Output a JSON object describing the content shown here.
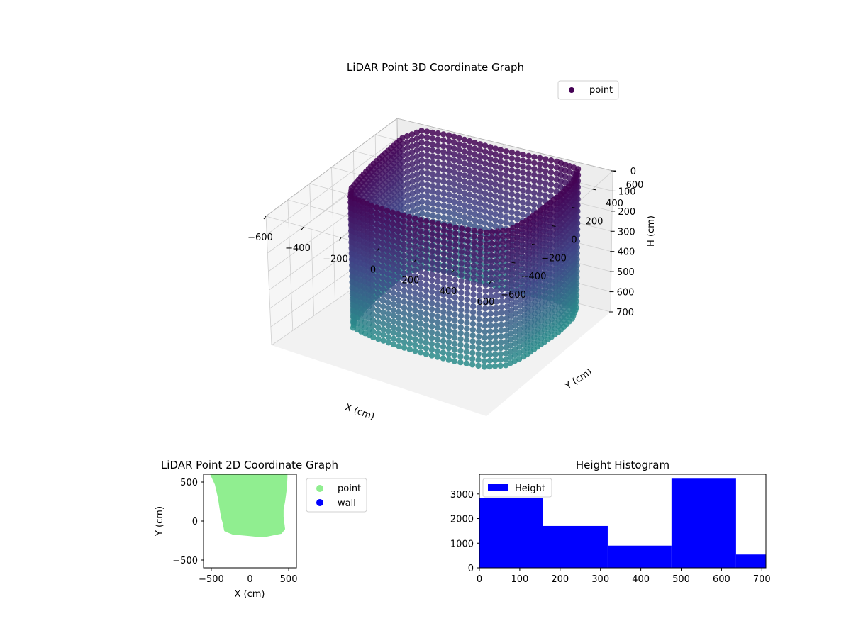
{
  "colors": {
    "point3d_top": "#440154",
    "point3d_bottom": "#2a8c8b",
    "point2d": "#90ee90",
    "wall": "#0000ff",
    "hist": "#0000ff"
  },
  "chart_data": [
    {
      "type": "scatter",
      "projection": "3d",
      "title": "LiDAR Point 3D Coordinate Graph",
      "xlabel": "X (cm)",
      "ylabel": "Y (cm)",
      "zlabel": "H (cm)",
      "xlim": [
        -600,
        600
      ],
      "ylim": [
        -600,
        600
      ],
      "zlim": [
        0,
        700
      ],
      "z_inverted": true,
      "xticks": [
        -600,
        -400,
        -200,
        0,
        200,
        400,
        600
      ],
      "yticks": [
        -600,
        -400,
        -200,
        0,
        200,
        400,
        600
      ],
      "zticks": [
        0,
        100,
        200,
        300,
        400,
        500,
        600,
        700
      ],
      "xtick_labels": [
        "−600",
        "−400",
        "−200",
        "0",
        "200",
        "400",
        "600"
      ],
      "ytick_labels": [
        "−600",
        "−400",
        "−200",
        "0",
        "200",
        "400",
        "600"
      ],
      "ztick_labels": [
        "0",
        "100",
        "200",
        "300",
        "400",
        "500",
        "600",
        "700"
      ],
      "legend": [
        "point"
      ],
      "legend_position": "top-right",
      "colormap": "viridis",
      "grid": true,
      "series": [
        {
          "name": "point",
          "shape": "room-boundary point cloud",
          "boundary_xy": [
            [
              -380,
              -200
            ],
            [
              -250,
              -230
            ],
            [
              -100,
              -240
            ],
            [
              50,
              -235
            ],
            [
              200,
              -220
            ],
            [
              350,
              -190
            ],
            [
              430,
              -120
            ],
            [
              460,
              0
            ],
            [
              470,
              150
            ],
            [
              480,
              300
            ],
            [
              470,
              450
            ],
            [
              430,
              560
            ],
            [
              300,
              580
            ],
            [
              150,
              570
            ],
            [
              0,
              560
            ],
            [
              -150,
              570
            ],
            [
              -300,
              580
            ],
            [
              -440,
              560
            ],
            [
              -480,
              450
            ],
            [
              -470,
              300
            ],
            [
              -460,
              150
            ],
            [
              -440,
              0
            ],
            [
              -420,
              -120
            ]
          ],
          "height_range": [
            0,
            700
          ]
        }
      ]
    },
    {
      "type": "scatter",
      "title": "LiDAR Point 2D Coordinate Graph",
      "xlabel": "X (cm)",
      "ylabel": "Y (cm)",
      "xlim": [
        -600,
        600
      ],
      "ylim": [
        -600,
        600
      ],
      "xticks": [
        -500,
        0,
        500
      ],
      "yticks": [
        -500,
        0,
        500
      ],
      "xtick_labels": [
        "−500",
        "0",
        "500"
      ],
      "ytick_labels": [
        "−500",
        "0",
        "500"
      ],
      "legend": [
        "point",
        "wall"
      ],
      "legend_position": "outside-right",
      "series": [
        {
          "name": "point",
          "boundary_xy": [
            [
              -500,
              600
            ],
            [
              -440,
              470
            ],
            [
              -400,
              300
            ],
            [
              -380,
              170
            ],
            [
              -360,
              50
            ],
            [
              -340,
              -20
            ],
            [
              -320,
              -120
            ],
            [
              -220,
              -160
            ],
            [
              -100,
              -170
            ],
            [
              0,
              -180
            ],
            [
              100,
              -190
            ],
            [
              200,
              -190
            ],
            [
              300,
              -170
            ],
            [
              400,
              -150
            ],
            [
              440,
              -100
            ],
            [
              420,
              50
            ],
            [
              420,
              150
            ],
            [
              440,
              250
            ],
            [
              460,
              400
            ],
            [
              470,
              550
            ],
            [
              470,
              600
            ]
          ]
        },
        {
          "name": "wall",
          "points": []
        }
      ]
    },
    {
      "type": "histogram",
      "title": "Height Histogram",
      "xlim": [
        0,
        710
      ],
      "ylim": [
        0,
        3800
      ],
      "xticks": [
        0,
        100,
        200,
        300,
        400,
        500,
        600,
        700
      ],
      "yticks": [
        0,
        1000,
        2000,
        3000
      ],
      "xtick_labels": [
        "0",
        "100",
        "200",
        "300",
        "400",
        "500",
        "600",
        "700"
      ],
      "ytick_labels": [
        "0",
        "1000",
        "2000",
        "3000"
      ],
      "legend": [
        "Height"
      ],
      "legend_position": "top-left",
      "bins": [
        0,
        158,
        318,
        476,
        636,
        710
      ],
      "counts": [
        2850,
        1700,
        900,
        3620,
        540
      ]
    }
  ]
}
